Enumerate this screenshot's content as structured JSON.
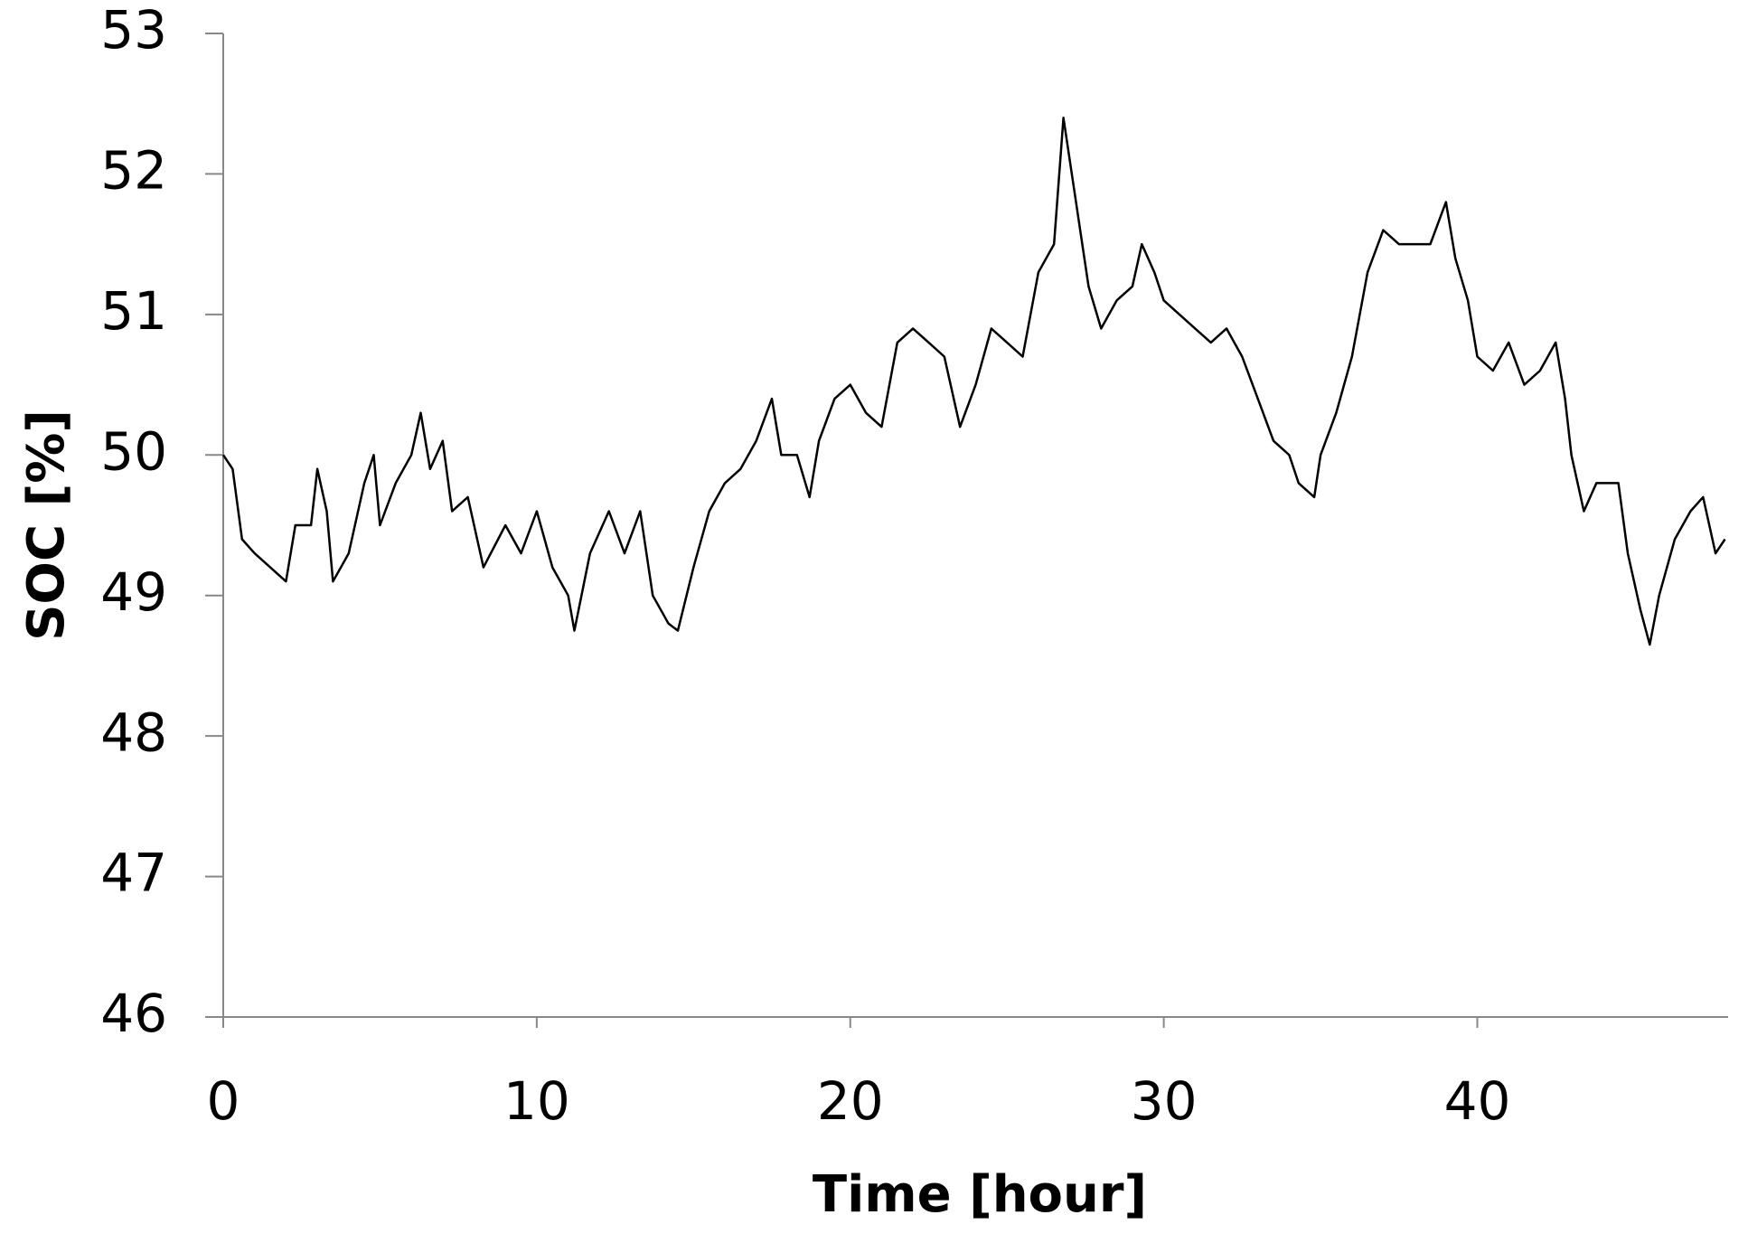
{
  "chart_data": {
    "type": "line",
    "xlabel": "Time [hour]",
    "ylabel": "SOC [%]",
    "xlim": [
      0,
      48
    ],
    "ylim": [
      46,
      53
    ],
    "xticks": [
      0,
      10,
      20,
      30,
      40
    ],
    "yticks": [
      46,
      47,
      48,
      49,
      50,
      51,
      52,
      53
    ],
    "grid": false,
    "series": [
      {
        "color": "#000000",
        "x": [
          0,
          0.3,
          0.6,
          1,
          1.5,
          2,
          2.3,
          2.8,
          3,
          3.3,
          3.5,
          4,
          4.5,
          4.8,
          5,
          5.5,
          6,
          6.3,
          6.6,
          7,
          7.3,
          7.8,
          8.3,
          9,
          9.5,
          10,
          10.5,
          11,
          11.2,
          11.7,
          12.3,
          12.8,
          13.3,
          13.7,
          14.2,
          14.5,
          15,
          15.5,
          16,
          16.5,
          17,
          17.5,
          17.8,
          18.3,
          18.7,
          19,
          19.5,
          20,
          20.5,
          21,
          21.5,
          22,
          22.5,
          23,
          23.5,
          24,
          24.5,
          25,
          25.5,
          26,
          26.5,
          26.8,
          27.2,
          27.6,
          28,
          28.5,
          29,
          29.3,
          29.7,
          30,
          30.5,
          31,
          31.5,
          32,
          32.5,
          33,
          33.5,
          34,
          34.3,
          34.8,
          35,
          35.5,
          36,
          36.5,
          37,
          37.5,
          38,
          38.5,
          39,
          39.3,
          39.7,
          40,
          40.5,
          41,
          41.5,
          42,
          42.5,
          42.8,
          43,
          43.4,
          43.8,
          44.5,
          44.8,
          45.2,
          45.5,
          45.8,
          46.3,
          46.8,
          47.2,
          47.6,
          47.9
        ],
        "values": [
          50.0,
          49.9,
          49.4,
          49.3,
          49.2,
          49.1,
          49.5,
          49.5,
          49.9,
          49.6,
          49.1,
          49.3,
          49.8,
          50.0,
          49.5,
          49.8,
          50.0,
          50.3,
          49.9,
          50.1,
          49.6,
          49.7,
          49.2,
          49.5,
          49.3,
          49.6,
          49.2,
          49.0,
          48.75,
          49.3,
          49.6,
          49.3,
          49.6,
          49.0,
          48.8,
          48.75,
          49.2,
          49.6,
          49.8,
          49.9,
          50.1,
          50.4,
          50.0,
          50.0,
          49.7,
          50.1,
          50.4,
          50.5,
          50.3,
          50.2,
          50.8,
          50.9,
          50.8,
          50.7,
          50.2,
          50.5,
          50.9,
          50.8,
          50.7,
          51.3,
          51.5,
          52.4,
          51.8,
          51.2,
          50.9,
          51.1,
          51.2,
          51.5,
          51.3,
          51.1,
          51.0,
          50.9,
          50.8,
          50.9,
          50.7,
          50.4,
          50.1,
          50.0,
          49.8,
          49.7,
          50.0,
          50.3,
          50.7,
          51.3,
          51.6,
          51.5,
          51.5,
          51.5,
          51.8,
          51.4,
          51.1,
          50.7,
          50.6,
          50.8,
          50.5,
          50.6,
          50.8,
          50.4,
          50.0,
          49.6,
          49.8,
          49.8,
          49.3,
          48.9,
          48.65,
          49.0,
          49.4,
          49.6,
          49.7,
          49.3,
          49.4
        ]
      }
    ]
  }
}
